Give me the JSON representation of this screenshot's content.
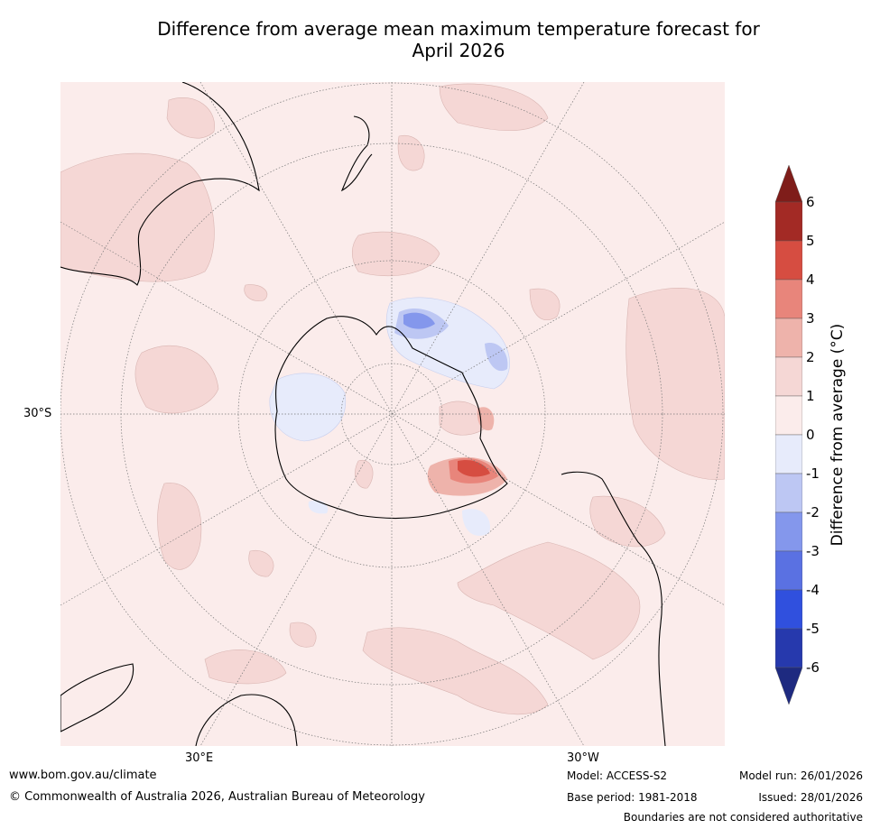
{
  "title": {
    "line1": "Difference from average mean maximum temperature forecast for",
    "line2": "April 2026"
  },
  "map": {
    "projection": "south-polar stereographic",
    "lat_label": "30°S",
    "lon_labels": {
      "east": "30°E",
      "west": "30°W"
    },
    "features": [
      "Australia",
      "New Zealand",
      "Antarctica",
      "South America",
      "Africa"
    ]
  },
  "legend": {
    "title": "Difference from average (°C)",
    "ticks": [
      "6",
      "5",
      "4",
      "3",
      "2",
      "1",
      "0",
      "-1",
      "-2",
      "-3",
      "-4",
      "-5",
      "-6"
    ],
    "bins": [
      {
        "range": ">6",
        "color": "#7f1d1a"
      },
      {
        "range": "5 to 6",
        "color": "#a32a25"
      },
      {
        "range": "4 to 5",
        "color": "#d64d41"
      },
      {
        "range": "3 to 4",
        "color": "#e8857b"
      },
      {
        "range": "2 to 3",
        "color": "#eeb3ab"
      },
      {
        "range": "1 to 2",
        "color": "#f5d7d5"
      },
      {
        "range": "0 to 1",
        "color": "#fbeceb"
      },
      {
        "range": "-1 to 0",
        "color": "#e7ebfb"
      },
      {
        "range": "-2 to -1",
        "color": "#bdc7f3"
      },
      {
        "range": "-3 to -2",
        "color": "#8497ec"
      },
      {
        "range": "-4 to -3",
        "color": "#5a71e2"
      },
      {
        "range": "-5 to -4",
        "color": "#3050de"
      },
      {
        "range": "-6 to -5",
        "color": "#2639ad"
      },
      {
        "range": "<-6",
        "color": "#1e2a80"
      }
    ]
  },
  "footer": {
    "website": "www.bom.gov.au/climate",
    "copyright": "© Commonwealth of Australia 2026, Australian Bureau of Meteorology",
    "model": "Model: ACCESS-S2",
    "base_period": "Base period: 1981-2018",
    "model_run": "Model run: 26/01/2026",
    "issued": "Issued: 28/01/2026",
    "disclaimer": "Boundaries are not considered authoritative"
  }
}
